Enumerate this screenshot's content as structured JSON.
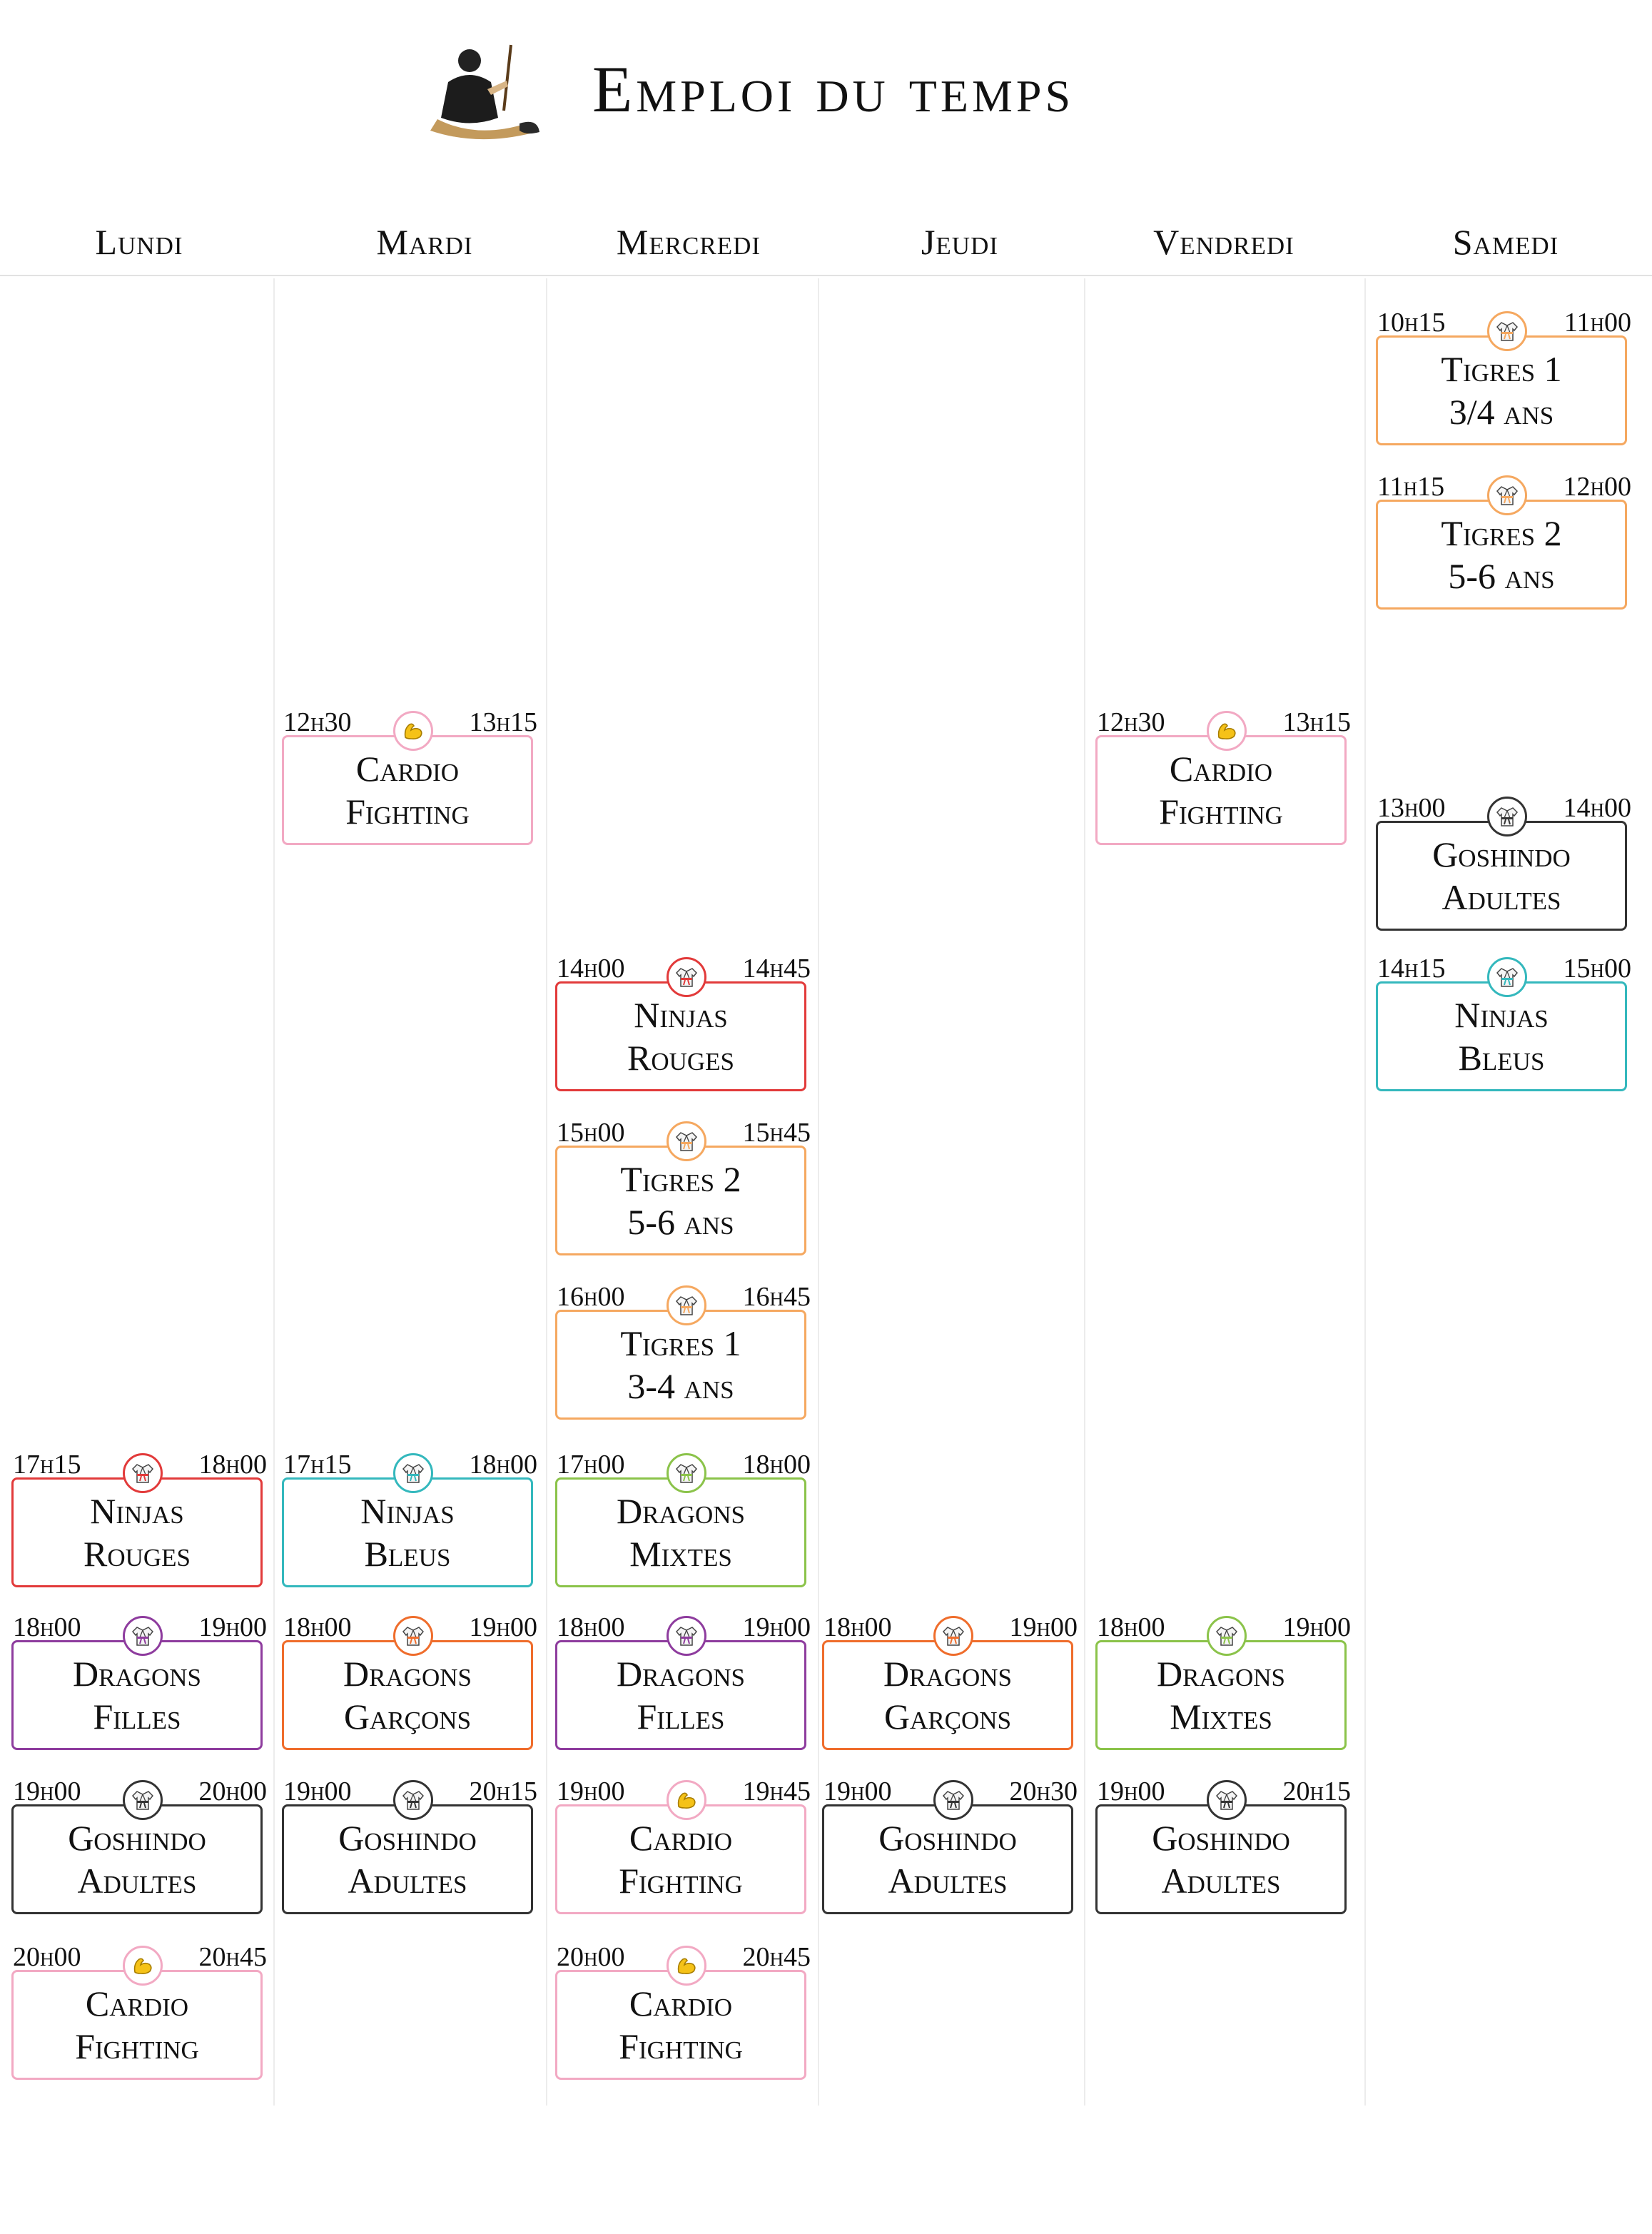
{
  "header": {
    "title": "Emploi du temps",
    "logo_icon": "samurai-logo-icon"
  },
  "days": [
    "Lundi",
    "Mardi",
    "Mercredi",
    "Jeudi",
    "Vendredi",
    "Samedi"
  ],
  "colors": {
    "red": "#e23a3a",
    "orange": "#f5a860",
    "pink": "#f2a9c3",
    "black": "#333333",
    "teal": "#34b8bd",
    "green": "#8bc34a",
    "purple": "#8e3c9e",
    "darkorange": "#ef6d2c"
  },
  "icons": {
    "gi": "karate-gi-icon",
    "arm": "flexed-biceps-icon"
  },
  "slots": [
    {
      "day": "Samedi",
      "start": "10h15",
      "end": "11h00",
      "line1": "Tigres 1",
      "line2": "3/4 ans",
      "color": "orange",
      "icon": "gi"
    },
    {
      "day": "Samedi",
      "start": "11h15",
      "end": "12h00",
      "line1": "Tigres 2",
      "line2": "5-6 ans",
      "color": "orange",
      "icon": "gi"
    },
    {
      "day": "Mardi",
      "start": "12h30",
      "end": "13h15",
      "line1": "Cardio",
      "line2": "Fighting",
      "color": "pink",
      "icon": "arm"
    },
    {
      "day": "Vendredi",
      "start": "12h30",
      "end": "13h15",
      "line1": "Cardio",
      "line2": "Fighting",
      "color": "pink",
      "icon": "arm"
    },
    {
      "day": "Samedi",
      "start": "13h00",
      "end": "14h00",
      "line1": "Goshindo",
      "line2": "Adultes",
      "color": "black",
      "icon": "gi"
    },
    {
      "day": "Mercredi",
      "start": "14h00",
      "end": "14h45",
      "line1": "Ninjas",
      "line2": "Rouges",
      "color": "red",
      "icon": "gi"
    },
    {
      "day": "Samedi",
      "start": "14h15",
      "end": "15h00",
      "line1": "Ninjas",
      "line2": "Bleus",
      "color": "teal",
      "icon": "gi"
    },
    {
      "day": "Mercredi",
      "start": "15h00",
      "end": "15h45",
      "line1": "Tigres 2",
      "line2": "5-6 ans",
      "color": "orange",
      "icon": "gi"
    },
    {
      "day": "Mercredi",
      "start": "16h00",
      "end": "16h45",
      "line1": "Tigres 1",
      "line2": "3-4 ans",
      "color": "orange",
      "icon": "gi"
    },
    {
      "day": "Lundi",
      "start": "17h15",
      "end": "18h00",
      "line1": "Ninjas",
      "line2": "Rouges",
      "color": "red",
      "icon": "gi"
    },
    {
      "day": "Mardi",
      "start": "17h15",
      "end": "18h00",
      "line1": "Ninjas",
      "line2": "Bleus",
      "color": "teal",
      "icon": "gi"
    },
    {
      "day": "Mercredi",
      "start": "17h00",
      "end": "18h00",
      "line1": "Dragons",
      "line2": "Mixtes",
      "color": "green",
      "icon": "gi"
    },
    {
      "day": "Lundi",
      "start": "18h00",
      "end": "19h00",
      "line1": "Dragons",
      "line2": "Filles",
      "color": "purple",
      "icon": "gi"
    },
    {
      "day": "Mardi",
      "start": "18h00",
      "end": "19h00",
      "line1": "Dragons",
      "line2": "Garçons",
      "color": "darkorange",
      "icon": "gi"
    },
    {
      "day": "Mercredi",
      "start": "18h00",
      "end": "19h00",
      "line1": "Dragons",
      "line2": "Filles",
      "color": "purple",
      "icon": "gi"
    },
    {
      "day": "Jeudi",
      "start": "18h00",
      "end": "19h00",
      "line1": "Dragons",
      "line2": "Garçons",
      "color": "darkorange",
      "icon": "gi"
    },
    {
      "day": "Vendredi",
      "start": "18h00",
      "end": "19h00",
      "line1": "Dragons",
      "line2": "Mixtes",
      "color": "green",
      "icon": "gi"
    },
    {
      "day": "Lundi",
      "start": "19h00",
      "end": "20h00",
      "line1": "Goshindo",
      "line2": "Adultes",
      "color": "black",
      "icon": "gi"
    },
    {
      "day": "Mardi",
      "start": "19h00",
      "end": "20h15",
      "line1": "Goshindo",
      "line2": "Adultes",
      "color": "black",
      "icon": "gi"
    },
    {
      "day": "Mercredi",
      "start": "19h00",
      "end": "19h45",
      "line1": "Cardio",
      "line2": "Fighting",
      "color": "pink",
      "icon": "arm"
    },
    {
      "day": "Jeudi",
      "start": "19h00",
      "end": "20h30",
      "line1": "Goshindo",
      "line2": "Adultes",
      "color": "black",
      "icon": "gi"
    },
    {
      "day": "Vendredi",
      "start": "19h00",
      "end": "20h15",
      "line1": "Goshindo",
      "line2": "Adultes",
      "color": "black",
      "icon": "gi"
    },
    {
      "day": "Lundi",
      "start": "20h00",
      "end": "20h45",
      "line1": "Cardio",
      "line2": "Fighting",
      "color": "pink",
      "icon": "arm"
    },
    {
      "day": "Mercredi",
      "start": "20h00",
      "end": "20h45",
      "line1": "Cardio",
      "line2": "Fighting",
      "color": "pink",
      "icon": "arm"
    }
  ]
}
